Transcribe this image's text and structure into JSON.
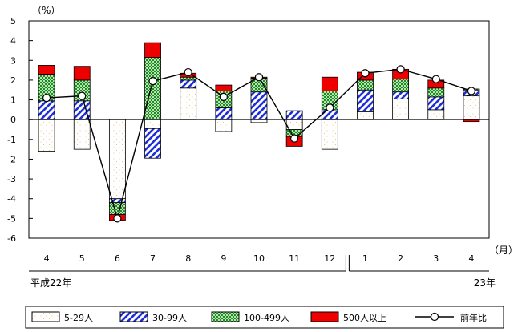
{
  "chart_data": {
    "type": "bar",
    "stacked": true,
    "y_unit": "（%）",
    "x_unit": "（月）",
    "categories": [
      "4",
      "5",
      "6",
      "7",
      "8",
      "9",
      "10",
      "11",
      "12",
      "1",
      "2",
      "3",
      "4"
    ],
    "era_labels": [
      {
        "label": "平成22年",
        "from": 0,
        "to": 8
      },
      {
        "label": "23年",
        "from": 9,
        "to": 12
      }
    ],
    "ylim": [
      -6,
      5
    ],
    "yticks": [
      5,
      4,
      3,
      2,
      1,
      0,
      -1,
      -2,
      -3,
      -4,
      -5,
      -6
    ],
    "grid": false,
    "legend_position": "bottom",
    "series": [
      {
        "name": "5-29人",
        "pattern": "dots",
        "color": "#ffffff",
        "values": [
          -1.6,
          -1.5,
          -4.0,
          -0.45,
          1.6,
          -0.6,
          -0.15,
          -0.5,
          -1.5,
          0.4,
          1.05,
          0.5,
          1.2
        ]
      },
      {
        "name": "30-99人",
        "pattern": "diagonal",
        "color": "#1f2fd8",
        "values": [
          0.95,
          0.95,
          -0.2,
          -1.5,
          0.4,
          0.6,
          1.4,
          0.45,
          0.5,
          1.1,
          0.35,
          0.65,
          0.3
        ]
      },
      {
        "name": "100-499人",
        "pattern": "checker",
        "color": "#16a02e",
        "values": [
          1.35,
          1.05,
          -0.6,
          3.15,
          0.15,
          0.85,
          0.7,
          -0.35,
          0.95,
          0.5,
          0.65,
          0.45,
          0.05
        ]
      },
      {
        "name": "500人以上",
        "pattern": "solid",
        "color": "#ee0000",
        "values": [
          0.45,
          0.7,
          -0.3,
          0.75,
          0.2,
          0.3,
          0.05,
          -0.5,
          0.7,
          0.4,
          0.5,
          0.4,
          -0.1
        ]
      }
    ],
    "line": {
      "name": "前年比",
      "values": [
        1.1,
        1.2,
        -5.0,
        1.95,
        2.4,
        1.15,
        2.15,
        -0.95,
        0.6,
        2.35,
        2.55,
        2.05,
        1.45
      ]
    }
  }
}
